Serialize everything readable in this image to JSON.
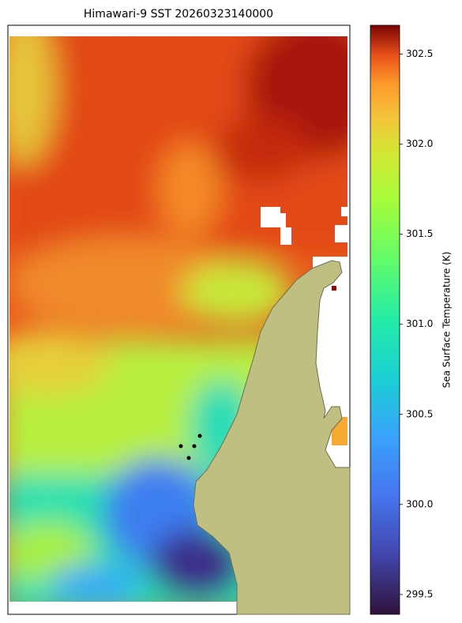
{
  "title": "Himawari-9 SST 20260323140000",
  "colorbar": {
    "label": "Sea Surface Temperature (K)",
    "lim": [
      299.39,
      302.66
    ],
    "ticks": [
      299.5,
      {
        "value": 300,
        "label": "300.0"
      },
      300.5,
      {
        "value": 301,
        "label": "301.0"
      },
      301.5,
      {
        "value": 302,
        "label": "302.0"
      },
      302.5
    ]
  }
}
